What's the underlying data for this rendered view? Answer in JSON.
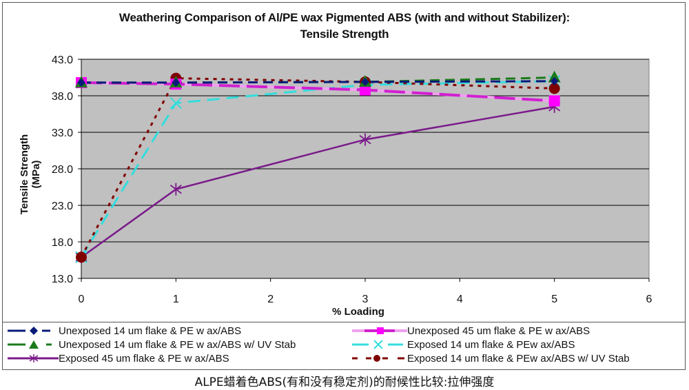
{
  "chart_data": {
    "type": "line",
    "title": "Weathering Comparison of Al/PE wax Pigmented ABS (with and without Stabilizer): Tensile Strength",
    "title_lines": [
      "Weathering Comparison of Al/PE wax Pigmented ABS (with and without Stabilizer):",
      "Tensile Strength"
    ],
    "xlabel": "% Loading",
    "ylabel": "Tensile Strength (MPa)",
    "xlim": [
      0,
      6
    ],
    "ylim": [
      13.0,
      43.0
    ],
    "xticks": [
      "0",
      "1",
      "2",
      "3",
      "4",
      "5",
      "6"
    ],
    "yticks": [
      "13.0",
      "18.0",
      "23.0",
      "28.0",
      "33.0",
      "38.0",
      "43.0"
    ],
    "grid": "horizontal",
    "legend_position": "bottom",
    "x": [
      0,
      1,
      3,
      5
    ],
    "series": [
      {
        "name": "Unexposed 14 um flake & PE wax/ABS",
        "color": "#0a1a7a",
        "marker": "diamond",
        "dash": "long-dash",
        "values": [
          39.8,
          39.8,
          39.9,
          40.0
        ]
      },
      {
        "name": "Unexposed 45 um flake & PE wax/ABS",
        "color": "#d020d0",
        "marker": "square",
        "dash": "solid-pink",
        "values": [
          39.8,
          39.6,
          38.8,
          37.3
        ]
      },
      {
        "name": "Unexposed 14 um flake & PE wax/ABS w/ UV Stab",
        "color": "#1a7a1a",
        "marker": "triangle",
        "dash": "long-dash",
        "values": [
          39.8,
          39.8,
          39.9,
          40.5
        ]
      },
      {
        "name": "Exposed 14 um flake & PE wax/ABS",
        "color": "#33dddd",
        "marker": "x",
        "dash": "dash",
        "values": [
          15.9,
          37.0,
          39.5,
          40.0
        ]
      },
      {
        "name": "Exposed 45 um flake & PE wax/ABS",
        "color": "#7a1a8a",
        "marker": "star",
        "dash": "solid",
        "values": [
          15.9,
          25.2,
          32.0,
          36.5
        ]
      },
      {
        "name": "Exposed 14 um flake & PE wax/ABS w/ UV Stab",
        "color": "#800000",
        "marker": "circle",
        "dash": "dot",
        "values": [
          15.9,
          40.4,
          39.9,
          39.0
        ]
      }
    ]
  },
  "legend": {
    "items": [
      "Unexposed 14 um flake & PE w ax/ABS",
      "Unexposed 45 um flake & PE w ax/ABS",
      "Unexposed 14 um flake & PE w ax/ABS w/ UV Stab",
      "Exposed 14 um flake & PEw ax/ABS",
      "Exposed 45 um flake & PE w ax/ABS",
      "Exposed 14 um flake & PEw ax/ABS w/ UV Stab"
    ]
  },
  "caption": "ALPE蜡着色ABS(有和没有稳定剂)的耐候性比较:拉伸强度"
}
